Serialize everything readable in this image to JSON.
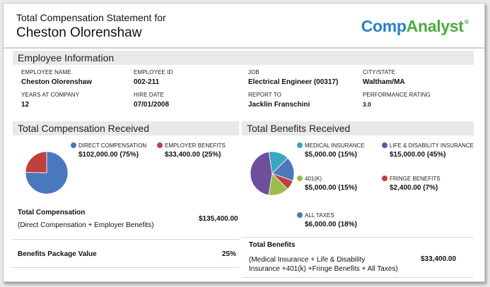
{
  "header": {
    "subtitle": "Total Compensation Statement for",
    "employee_name": "Cheston Olorenshaw",
    "logo": {
      "part1": "Comp",
      "part2": "Analyst",
      "mark": "®"
    }
  },
  "employee_info": {
    "section_title": "Employee Information",
    "fields": {
      "employee_name": {
        "label": "EMPLOYEE NAME",
        "value": "Cheston Olorenshaw"
      },
      "employee_id": {
        "label": "EMPLOYEE ID",
        "value": "002-211"
      },
      "job": {
        "label": "JOB",
        "value": "Electrical Engineer (00317)"
      },
      "city_state": {
        "label": "CITY/STATE",
        "value": "Waltham/MA"
      },
      "years_at_company": {
        "label": "YEARS AT COMPANY",
        "value": "12"
      },
      "hire_date": {
        "label": "HIRE DATE",
        "value": "07/01/2008"
      },
      "report_to": {
        "label": "REPORT TO",
        "value": "Jacklin Franschini"
      },
      "performance_rating": {
        "label": "PERFORMANCE RATING",
        "value": "3.0"
      }
    }
  },
  "total_comp": {
    "section_title": "Total Compensation Received",
    "legend": [
      {
        "label": "DIRECT COMPENSATION",
        "value": "$102,000.00 (75%)",
        "color": "#4a78bd"
      },
      {
        "label": "EMPLOYER BENEFITS",
        "value": "$33,400.00 (25%)",
        "color": "#c0403e"
      }
    ],
    "summary_title": "Total Compensation",
    "summary_desc": "(Direct Compensation + Employer Benefits)",
    "summary_value": "$135,400.00",
    "package_label": "Benefits Package Value",
    "package_value": "25%"
  },
  "total_benefits": {
    "section_title": "Total Benefits Received",
    "legend": [
      {
        "label": "MEDICAL INSURANCE",
        "value": "$5,000.00 (15%)",
        "color": "#3aa6c0"
      },
      {
        "label": "LIFE & DISABILITY INSURANCE",
        "value": "$15,000.00 (45%)",
        "color": "#6e4f9c"
      },
      {
        "label": "401(K)",
        "value": "$5,000.00 (15%)",
        "color": "#9bbd4d"
      },
      {
        "label": "FRINGE BENEFITS",
        "value": "$2,400.00 (7%)",
        "color": "#c0403e"
      },
      {
        "label": "ALL TAXES",
        "value": "$6,000.00 (18%)",
        "color": "#4a78bd"
      }
    ],
    "summary_title": "Total Benefits",
    "summary_desc_line1": "(Medical Insurance + Life & Disability",
    "summary_desc_line2": "Insurance +401(k) +Fringe Benefits + All Taxes)",
    "summary_value": "$33,400.00"
  },
  "chart_data": [
    {
      "type": "pie",
      "title": "Total Compensation Received",
      "categories": [
        "DIRECT COMPENSATION",
        "EMPLOYER BENEFITS"
      ],
      "values": [
        102000,
        33400
      ],
      "colors": [
        "#4a78bd",
        "#c0403e"
      ]
    },
    {
      "type": "pie",
      "title": "Total Benefits Received",
      "categories": [
        "ALL TAXES",
        "FRINGE BENEFITS",
        "401(K)",
        "LIFE & DISABILITY INSURANCE",
        "MEDICAL INSURANCE"
      ],
      "values": [
        6000,
        2400,
        5000,
        15000,
        5000
      ],
      "colors": [
        "#4a78bd",
        "#c0403e",
        "#9bbd4d",
        "#6e4f9c",
        "#3aa6c0"
      ]
    }
  ]
}
